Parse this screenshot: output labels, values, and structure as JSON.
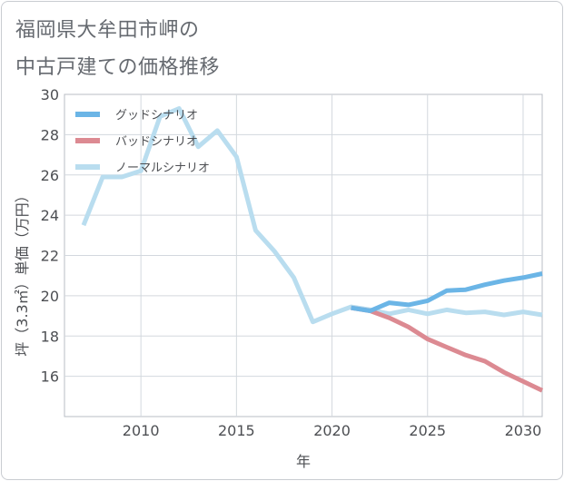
{
  "chart_data": {
    "type": "line",
    "title_line1": "福岡県大牟田市岬の",
    "title_line2": "中古戸建ての価格推移",
    "xlabel": "年",
    "ylabel": "坪（3.3㎡）単価（万円）",
    "xlim": [
      2006,
      2031
    ],
    "ylim": [
      14,
      30
    ],
    "xticks": [
      2010,
      2015,
      2020,
      2025,
      2030
    ],
    "yticks": [
      16,
      18,
      20,
      22,
      24,
      26,
      28,
      30
    ],
    "series": [
      {
        "name": "グッドシナリオ",
        "color": "#6bb5e6",
        "x": [
          2021,
          2022,
          2023,
          2024,
          2025,
          2026,
          2027,
          2028,
          2029,
          2030,
          2031
        ],
        "values": [
          19.4,
          19.25,
          19.65,
          19.55,
          19.75,
          20.25,
          20.3,
          20.55,
          20.75,
          20.9,
          21.1
        ]
      },
      {
        "name": "バッドシナリオ",
        "color": "#dc8a92",
        "x": [
          2021,
          2022,
          2023,
          2024,
          2025,
          2026,
          2027,
          2028,
          2029,
          2030,
          2031
        ],
        "values": [
          19.4,
          19.25,
          18.9,
          18.45,
          17.85,
          17.45,
          17.05,
          16.75,
          16.2,
          15.75,
          15.3
        ]
      },
      {
        "name": "ノーマルシナリオ",
        "color": "#b9ddef",
        "x": [
          2007,
          2008,
          2009,
          2010,
          2011,
          2012,
          2013,
          2014,
          2015,
          2016,
          2017,
          2018,
          2019,
          2020,
          2021,
          2022,
          2023,
          2024,
          2025,
          2026,
          2027,
          2028,
          2029,
          2030,
          2031
        ],
        "values": [
          23.5,
          25.9,
          25.9,
          26.2,
          28.9,
          29.3,
          27.4,
          28.2,
          26.9,
          23.25,
          22.2,
          20.9,
          18.7,
          19.1,
          19.45,
          19.3,
          19.1,
          19.3,
          19.1,
          19.3,
          19.15,
          19.2,
          19.05,
          19.2,
          19.05
        ]
      }
    ]
  }
}
